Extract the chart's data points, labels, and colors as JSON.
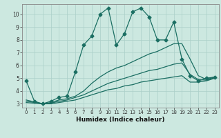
{
  "xlabel": "Humidex (Indice chaleur)",
  "xlim": [
    -0.5,
    23.5
  ],
  "ylim": [
    2.7,
    10.8
  ],
  "xticks": [
    0,
    1,
    2,
    3,
    4,
    5,
    6,
    7,
    8,
    9,
    10,
    11,
    12,
    13,
    14,
    15,
    16,
    17,
    18,
    19,
    20,
    21,
    22,
    23
  ],
  "yticks": [
    3,
    4,
    5,
    6,
    7,
    8,
    9,
    10
  ],
  "bg_color": "#cce8e0",
  "grid_color": "#aacfc8",
  "line_color": "#1a6e62",
  "line1_x": [
    0,
    1,
    2,
    3,
    4,
    5,
    6,
    7,
    8,
    9,
    10,
    11,
    12,
    13,
    14,
    15,
    16,
    17,
    18,
    19,
    20,
    21,
    22,
    23
  ],
  "line1_y": [
    4.8,
    3.2,
    3.0,
    3.2,
    3.5,
    3.6,
    5.5,
    7.6,
    8.3,
    10.0,
    10.5,
    7.6,
    8.5,
    10.2,
    10.5,
    9.8,
    8.0,
    8.0,
    9.4,
    6.5,
    5.2,
    4.8,
    5.0,
    5.1
  ],
  "line2_x": [
    0,
    2,
    3,
    4,
    5,
    6,
    7,
    8,
    9,
    10,
    11,
    12,
    13,
    14,
    15,
    16,
    17,
    18,
    19,
    20,
    21,
    22,
    23
  ],
  "line2_y": [
    3.3,
    3.0,
    3.1,
    3.3,
    3.4,
    3.6,
    4.0,
    4.6,
    5.1,
    5.5,
    5.8,
    6.0,
    6.3,
    6.6,
    6.9,
    7.1,
    7.4,
    7.7,
    7.7,
    6.5,
    5.2,
    4.9,
    5.1
  ],
  "line3_x": [
    0,
    2,
    3,
    4,
    5,
    6,
    7,
    8,
    9,
    10,
    11,
    12,
    13,
    14,
    15,
    16,
    17,
    18,
    19,
    20,
    21,
    22,
    23
  ],
  "line3_y": [
    3.2,
    3.0,
    3.05,
    3.2,
    3.3,
    3.5,
    3.7,
    4.0,
    4.3,
    4.6,
    4.8,
    5.0,
    5.2,
    5.4,
    5.6,
    5.7,
    5.9,
    6.1,
    6.2,
    5.3,
    4.9,
    4.85,
    5.05
  ],
  "line4_x": [
    0,
    2,
    3,
    4,
    5,
    6,
    7,
    8,
    9,
    10,
    11,
    12,
    13,
    14,
    15,
    16,
    17,
    18,
    19,
    20,
    21,
    22,
    23
  ],
  "line4_y": [
    3.1,
    3.0,
    3.0,
    3.1,
    3.2,
    3.3,
    3.5,
    3.7,
    3.9,
    4.1,
    4.2,
    4.4,
    4.5,
    4.7,
    4.8,
    4.9,
    5.0,
    5.1,
    5.2,
    4.7,
    4.7,
    4.8,
    5.0
  ]
}
